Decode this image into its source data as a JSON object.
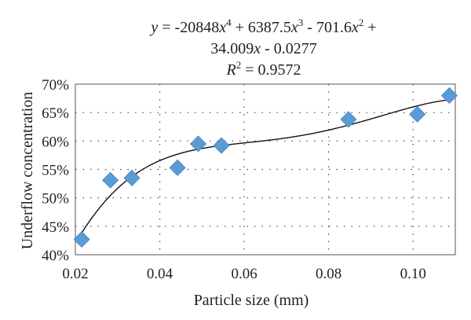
{
  "chart_data": {
    "type": "scatter",
    "xlabel": "Particle size (mm)",
    "ylabel": "Underflow concentration",
    "xlim": [
      0.02,
      0.11
    ],
    "ylim": [
      0.4,
      0.7
    ],
    "x_ticks": [
      0.02,
      0.04,
      0.06,
      0.08,
      0.1
    ],
    "x_tick_labels": [
      "0.02",
      "0.04",
      "0.06",
      "0.08",
      "0.10"
    ],
    "y_ticks": [
      0.4,
      0.45,
      0.5,
      0.55,
      0.6,
      0.65,
      0.7
    ],
    "y_tick_labels": [
      "40%",
      "45%",
      "50%",
      "55%",
      "60%",
      "65%",
      "70%"
    ],
    "grid": "dotted",
    "marker": "diamond",
    "marker_color": "#5b9bd5",
    "trendline_color": "#000000",
    "points": [
      {
        "x": 0.0215,
        "y": 0.427
      },
      {
        "x": 0.0283,
        "y": 0.531
      },
      {
        "x": 0.0334,
        "y": 0.535
      },
      {
        "x": 0.0442,
        "y": 0.553
      },
      {
        "x": 0.0491,
        "y": 0.595
      },
      {
        "x": 0.0546,
        "y": 0.592
      },
      {
        "x": 0.0847,
        "y": 0.638
      },
      {
        "x": 0.101,
        "y": 0.647
      },
      {
        "x": 0.1086,
        "y": 0.68
      }
    ],
    "trendline": {
      "type": "polynomial",
      "degree": 4,
      "coefficients": [
        -20848,
        6387.5,
        -701.6,
        34.009,
        -0.0277
      ],
      "equation": {
        "line1": {
          "y": "y",
          "eq1": " = -20848",
          "x1": "x",
          "p1": "4",
          "mid1": " + 6387.5",
          "x2": "x",
          "p2": "3",
          "mid2": " - 701.6",
          "x3": "x",
          "p3": "2",
          "end": " +"
        },
        "line2": {
          "pre": "34.009",
          "x": "x",
          "post": " - 0.0277"
        },
        "line3": {
          "R": "R",
          "p": "2",
          "val": " = 0.9572"
        }
      }
    }
  }
}
